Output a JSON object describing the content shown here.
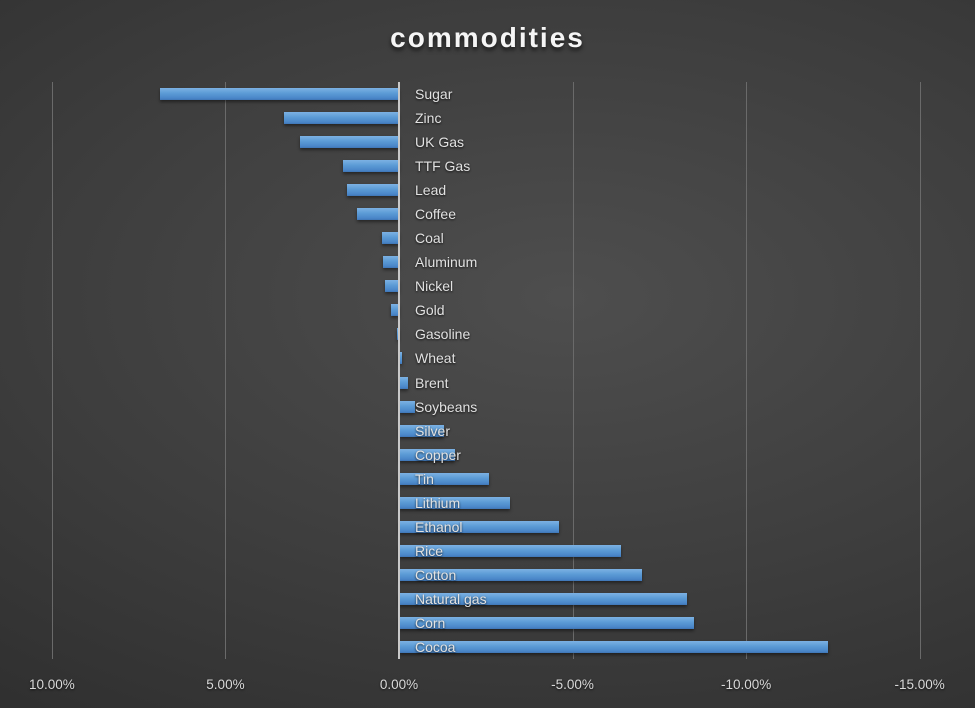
{
  "title": "commodities",
  "colors": {
    "bar_top": "#7cb1e3",
    "bar_main": "#5b9bd5",
    "bar_bottom": "#3f76b4",
    "background_center": "#4e4e4e",
    "background_edge": "#242424",
    "gridline": "#6a6a6a",
    "zero_axis_line": "#c9c9c9",
    "category_text": "#e2e2e2",
    "tick_text": "#d9d9d9",
    "title_text": "#f5f5f5"
  },
  "chart_data": {
    "type": "bar",
    "orientation": "horizontal",
    "title": "commodities",
    "legend": "none",
    "grid": true,
    "categories": [
      "Sugar",
      "Zinc",
      "UK Gas",
      "TTF Gas",
      "Lead",
      "Coffee",
      "Coal",
      "Aluminum",
      "Nickel",
      "Gold",
      "Gasoline",
      "Wheat",
      "Brent",
      "Soybeans",
      "Silver",
      "Copper",
      "Tin",
      "Lithium",
      "Ethanol",
      "Rice",
      "Cotton",
      "Natural gas",
      "Corn",
      "Cocoa"
    ],
    "values_pct": [
      6.9,
      3.3,
      2.85,
      1.6,
      1.5,
      1.2,
      0.5,
      0.45,
      0.4,
      0.23,
      0.05,
      -0.1,
      -0.26,
      -0.45,
      -1.3,
      -1.6,
      -2.6,
      -3.2,
      -4.6,
      -6.4,
      -7.0,
      -8.3,
      -8.5,
      -12.35
    ],
    "x_axis": {
      "reversed": true,
      "unit": "%",
      "min": -15,
      "max": 10,
      "tick_values": [
        10,
        5,
        0,
        -5,
        -10,
        -15
      ],
      "tick_labels": [
        "10.00%",
        "5.00%",
        "0.00%",
        "-5.00%",
        "-10.00%",
        "-15.00%"
      ]
    }
  }
}
